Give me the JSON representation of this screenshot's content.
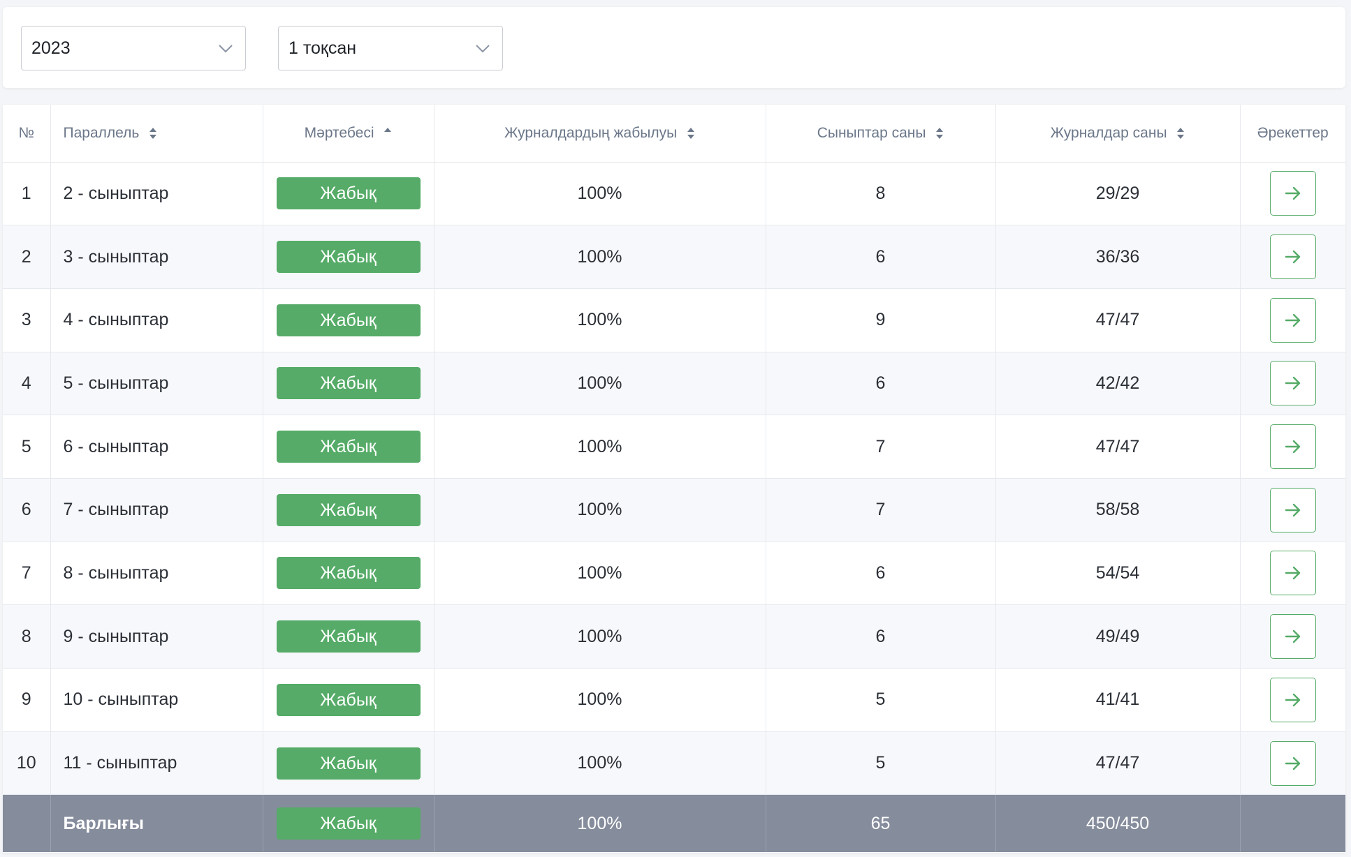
{
  "filters": {
    "year": "2023",
    "quarter": "1 тоқсан"
  },
  "table": {
    "headers": {
      "num": "№",
      "parallel": "Параллель",
      "status": "Мәртебесі",
      "closure": "Журналдардың жабылуы",
      "classes": "Сыныптар саны",
      "journals": "Журналдар саны",
      "actions": "Әрекеттер"
    },
    "rows": [
      {
        "num": "1",
        "parallel": "2 - сыныптар",
        "status": "Жабық",
        "closure": "100%",
        "classes": "8",
        "journals": "29/29"
      },
      {
        "num": "2",
        "parallel": "3 - сыныптар",
        "status": "Жабық",
        "closure": "100%",
        "classes": "6",
        "journals": "36/36"
      },
      {
        "num": "3",
        "parallel": "4 - сыныптар",
        "status": "Жабық",
        "closure": "100%",
        "classes": "9",
        "journals": "47/47"
      },
      {
        "num": "4",
        "parallel": "5 - сыныптар",
        "status": "Жабық",
        "closure": "100%",
        "classes": "6",
        "journals": "42/42"
      },
      {
        "num": "5",
        "parallel": "6 - сыныптар",
        "status": "Жабық",
        "closure": "100%",
        "classes": "7",
        "journals": "47/47"
      },
      {
        "num": "6",
        "parallel": "7 - сыныптар",
        "status": "Жабық",
        "closure": "100%",
        "classes": "7",
        "journals": "58/58"
      },
      {
        "num": "7",
        "parallel": "8 - сыныптар",
        "status": "Жабық",
        "closure": "100%",
        "classes": "6",
        "journals": "54/54"
      },
      {
        "num": "8",
        "parallel": "9 - сыныптар",
        "status": "Жабық",
        "closure": "100%",
        "classes": "6",
        "journals": "49/49"
      },
      {
        "num": "9",
        "parallel": "10 - сыныптар",
        "status": "Жабық",
        "closure": "100%",
        "classes": "5",
        "journals": "41/41"
      },
      {
        "num": "10",
        "parallel": "11 - сыныптар",
        "status": "Жабық",
        "closure": "100%",
        "classes": "5",
        "journals": "47/47"
      }
    ],
    "total": {
      "label": "Барлығы",
      "status": "Жабық",
      "closure": "100%",
      "classes": "65",
      "journals": "450/450"
    }
  },
  "colors": {
    "status_closed": "#55ab67",
    "footer_bg": "#858c9c",
    "header_text": "#6b7789"
  },
  "icons": {
    "select": "chevron-down-icon",
    "sort": "sort-icon",
    "sort_asc": "sort-asc-icon",
    "action": "arrow-right-icon"
  }
}
